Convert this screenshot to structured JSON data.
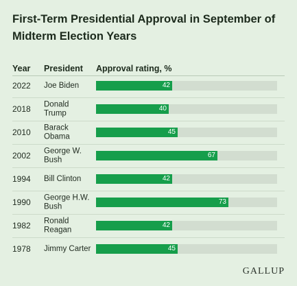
{
  "title": "First-Term Presidential Approval in September of Midterm Election Years",
  "headers": {
    "year": "Year",
    "president": "President",
    "rating": "Approval rating, %"
  },
  "logo": "GALLUP",
  "colors": {
    "bar": "#169e4b",
    "track": "#d2ddd0",
    "background": "#e4f0e2"
  },
  "chart_data": {
    "type": "bar",
    "orientation": "horizontal",
    "title": "First-Term Presidential Approval in September of Midterm Election Years",
    "ylabel": "Approval rating, %",
    "xlim": [
      0,
      100
    ],
    "rows": [
      {
        "year": "2022",
        "president": "Joe Biden",
        "value": 42
      },
      {
        "year": "2018",
        "president": "Donald Trump",
        "value": 40
      },
      {
        "year": "2010",
        "president": "Barack Obama",
        "value": 45
      },
      {
        "year": "2002",
        "president": "George W. Bush",
        "value": 67
      },
      {
        "year": "1994",
        "president": "Bill Clinton",
        "value": 42
      },
      {
        "year": "1990",
        "president": "George H.W. Bush",
        "value": 73
      },
      {
        "year": "1982",
        "president": "Ronald Reagan",
        "value": 42
      },
      {
        "year": "1978",
        "president": "Jimmy Carter",
        "value": 45
      }
    ]
  }
}
